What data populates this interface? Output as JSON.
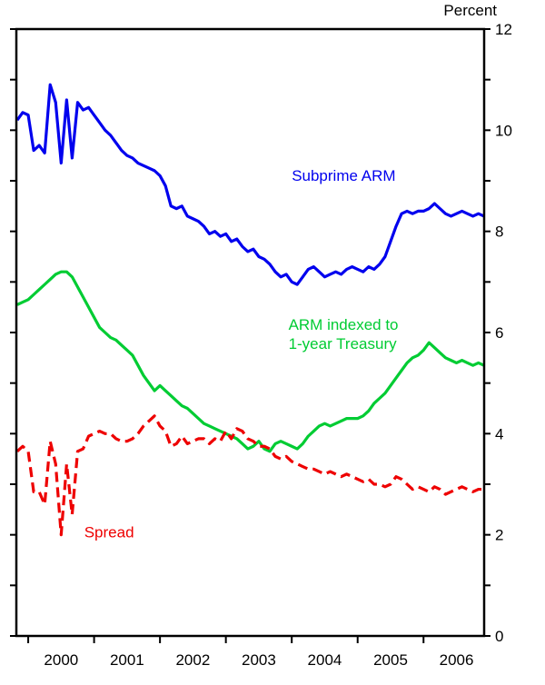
{
  "header": {
    "unit_label": "Percent"
  },
  "chart_data": {
    "type": "line",
    "title": "",
    "xlabel": "",
    "ylabel": "Percent",
    "grid": false,
    "legend_position": "inline-annotations",
    "xlim": [
      1999.82,
      2006.92
    ],
    "ylim": [
      0,
      12
    ],
    "x_start": 1999.8333,
    "x_step": 0.0833333,
    "y_major_ticks": [
      0,
      2,
      4,
      6,
      8,
      10,
      12
    ],
    "y_minor_ticks": [
      1,
      3,
      5,
      7,
      9,
      11
    ],
    "x_ticks": [
      2000,
      2001,
      2002,
      2003,
      2004,
      2005,
      2006
    ],
    "x_tick_labels": [
      "2000",
      "2001",
      "2002",
      "2003",
      "2004",
      "2005",
      "2006"
    ],
    "x_label_positions": [
      2000.5,
      2001.5,
      2002.5,
      2003.5,
      2004.5,
      2005.5,
      2006.5
    ],
    "series": [
      {
        "name": "Subprime ARM",
        "color": "#0000ee",
        "style": "solid",
        "values": [
          10.2,
          10.35,
          10.3,
          9.6,
          9.7,
          9.55,
          10.9,
          10.55,
          9.35,
          10.6,
          9.45,
          10.55,
          10.4,
          10.45,
          10.3,
          10.15,
          10.0,
          9.9,
          9.75,
          9.6,
          9.5,
          9.45,
          9.35,
          9.3,
          9.25,
          9.2,
          9.1,
          8.9,
          8.5,
          8.45,
          8.5,
          8.3,
          8.25,
          8.2,
          8.1,
          7.95,
          8.0,
          7.9,
          7.95,
          7.8,
          7.85,
          7.7,
          7.6,
          7.65,
          7.5,
          7.45,
          7.35,
          7.2,
          7.1,
          7.15,
          7.0,
          6.95,
          7.1,
          7.25,
          7.3,
          7.2,
          7.1,
          7.15,
          7.2,
          7.15,
          7.25,
          7.3,
          7.25,
          7.2,
          7.3,
          7.25,
          7.35,
          7.5,
          7.8,
          8.1,
          8.35,
          8.4,
          8.35,
          8.4,
          8.4,
          8.45,
          8.55,
          8.45,
          8.35,
          8.3,
          8.35,
          8.4,
          8.35,
          8.3,
          8.35,
          8.3
        ]
      },
      {
        "name": "ARM indexed to 1-year Treasury",
        "color": "#00cc33",
        "style": "solid",
        "values": [
          6.55,
          6.6,
          6.65,
          6.75,
          6.85,
          6.95,
          7.05,
          7.15,
          7.2,
          7.2,
          7.1,
          6.9,
          6.7,
          6.5,
          6.3,
          6.1,
          6.0,
          5.9,
          5.85,
          5.75,
          5.65,
          5.55,
          5.35,
          5.15,
          5.0,
          4.85,
          4.95,
          4.85,
          4.75,
          4.65,
          4.55,
          4.5,
          4.4,
          4.3,
          4.2,
          4.15,
          4.1,
          4.05,
          4.0,
          3.95,
          3.9,
          3.8,
          3.7,
          3.75,
          3.85,
          3.7,
          3.65,
          3.8,
          3.85,
          3.8,
          3.75,
          3.7,
          3.8,
          3.95,
          4.05,
          4.15,
          4.2,
          4.15,
          4.2,
          4.25,
          4.3,
          4.3,
          4.3,
          4.35,
          4.45,
          4.6,
          4.7,
          4.8,
          4.95,
          5.1,
          5.25,
          5.4,
          5.5,
          5.55,
          5.65,
          5.8,
          5.7,
          5.6,
          5.5,
          5.45,
          5.4,
          5.45,
          5.4,
          5.35,
          5.4,
          5.35
        ]
      },
      {
        "name": "Spread",
        "color": "#ee0000",
        "style": "dashed",
        "values": [
          3.65,
          3.75,
          3.65,
          2.85,
          2.85,
          2.6,
          3.85,
          3.4,
          2.0,
          3.4,
          2.4,
          3.65,
          3.7,
          3.95,
          4.0,
          4.05,
          4.0,
          4.0,
          3.9,
          3.85,
          3.85,
          3.9,
          4.0,
          4.15,
          4.25,
          4.35,
          4.15,
          4.05,
          3.75,
          3.8,
          3.95,
          3.8,
          3.85,
          3.9,
          3.9,
          3.8,
          3.9,
          3.85,
          4.05,
          3.9,
          4.1,
          4.05,
          3.9,
          3.85,
          3.75,
          3.75,
          3.7,
          3.55,
          3.5,
          3.55,
          3.45,
          3.4,
          3.35,
          3.3,
          3.3,
          3.25,
          3.2,
          3.25,
          3.2,
          3.15,
          3.2,
          3.15,
          3.1,
          3.05,
          3.1,
          3.0,
          3.0,
          2.95,
          3.0,
          3.15,
          3.1,
          3.0,
          2.9,
          2.95,
          2.9,
          2.85,
          2.95,
          2.9,
          2.8,
          2.85,
          2.9,
          2.95,
          2.9,
          2.85,
          2.9,
          2.9
        ]
      }
    ],
    "annotations": [
      {
        "text": "Subprime ARM",
        "color": "#0000ee",
        "x": 2004.0,
        "y": 9.0
      },
      {
        "text": "ARM indexed to",
        "color": "#00cc33",
        "x": 2003.95,
        "y": 6.05
      },
      {
        "text": "1-year Treasury",
        "color": "#00cc33",
        "x": 2003.95,
        "y": 5.68
      },
      {
        "text": "Spread",
        "color": "#ee0000",
        "x": 2000.85,
        "y": 1.95
      }
    ]
  }
}
